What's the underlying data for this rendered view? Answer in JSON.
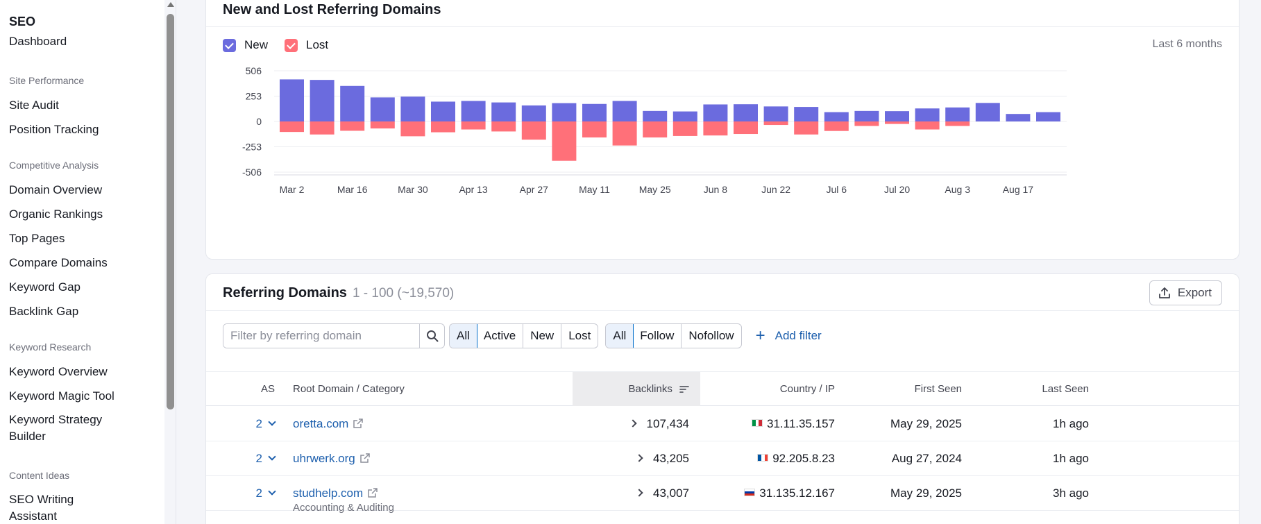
{
  "sidebar": {
    "title": "SEO",
    "dashboard": "Dashboard",
    "sections": [
      {
        "label": "Site Performance",
        "items": [
          "Site Audit",
          "Position Tracking"
        ]
      },
      {
        "label": "Competitive Analysis",
        "items": [
          "Domain Overview",
          "Organic Rankings",
          "Top Pages",
          "Compare Domains",
          "Keyword Gap",
          "Backlink Gap"
        ]
      },
      {
        "label": "Keyword Research",
        "items": [
          "Keyword Overview",
          "Keyword Magic Tool",
          "Keyword Strategy Builder"
        ]
      },
      {
        "label": "Content Ideas",
        "items": [
          "SEO Writing Assistant"
        ]
      }
    ]
  },
  "chart_card": {
    "title": "New and Lost Referring Domains",
    "legend_new": "New",
    "legend_lost": "Lost",
    "range": "Last 6 months"
  },
  "colors": {
    "new": "#6b6bde",
    "lost": "#ff7079",
    "link": "#1d5fad"
  },
  "chart_data": {
    "type": "bar",
    "yticks": [
      506,
      253,
      0,
      -253,
      -506
    ],
    "ylim": [
      -506,
      506
    ],
    "xtick_labels": [
      "Mar 2",
      "Mar 16",
      "Mar 30",
      "Apr 13",
      "Apr 27",
      "May 11",
      "May 25",
      "Jun 8",
      "Jun 22",
      "Jul 6",
      "Jul 20",
      "Aug 3",
      "Aug 17"
    ],
    "series": [
      {
        "name": "New",
        "values": [
          420,
          415,
          355,
          240,
          248,
          198,
          205,
          190,
          160,
          183,
          175,
          205,
          105,
          100,
          170,
          172,
          150,
          145,
          93,
          105,
          103,
          130,
          140,
          185,
          75,
          93
        ]
      },
      {
        "name": "Lost",
        "values": [
          -105,
          -130,
          -93,
          -70,
          -148,
          -108,
          -80,
          -100,
          -182,
          -393,
          -160,
          -240,
          -160,
          -145,
          -140,
          -125,
          -35,
          -130,
          -95,
          -45,
          -25,
          -80,
          -45,
          0,
          0,
          0
        ]
      }
    ]
  },
  "table_card": {
    "title": "Referring Domains",
    "count": "1 - 100 (~19,570)",
    "export": "Export",
    "search_placeholder": "Filter by referring domain",
    "status_filters": [
      "All",
      "Active",
      "New",
      "Lost"
    ],
    "follow_filters": [
      "All",
      "Follow",
      "Nofollow"
    ],
    "add_filter": "Add filter",
    "headers": {
      "as": "AS",
      "domain": "Root Domain / Category",
      "backlinks": "Backlinks",
      "country": "Country / IP",
      "first_seen": "First Seen",
      "last_seen": "Last Seen"
    },
    "rows": [
      {
        "as": "2",
        "domain": "oretta.com",
        "category": "",
        "backlinks": "107,434",
        "flag": "it",
        "ip": "31.11.35.157",
        "first_seen": "May 29, 2025",
        "last_seen": "1h ago"
      },
      {
        "as": "2",
        "domain": "uhrwerk.org",
        "category": "",
        "backlinks": "43,205",
        "flag": "fr",
        "ip": "92.205.8.23",
        "first_seen": "Aug 27, 2024",
        "last_seen": "1h ago"
      },
      {
        "as": "2",
        "domain": "studhelp.com",
        "category": "Accounting & Auditing",
        "backlinks": "43,007",
        "flag": "ru",
        "ip": "31.135.12.167",
        "first_seen": "May 29, 2025",
        "last_seen": "3h ago"
      }
    ]
  }
}
